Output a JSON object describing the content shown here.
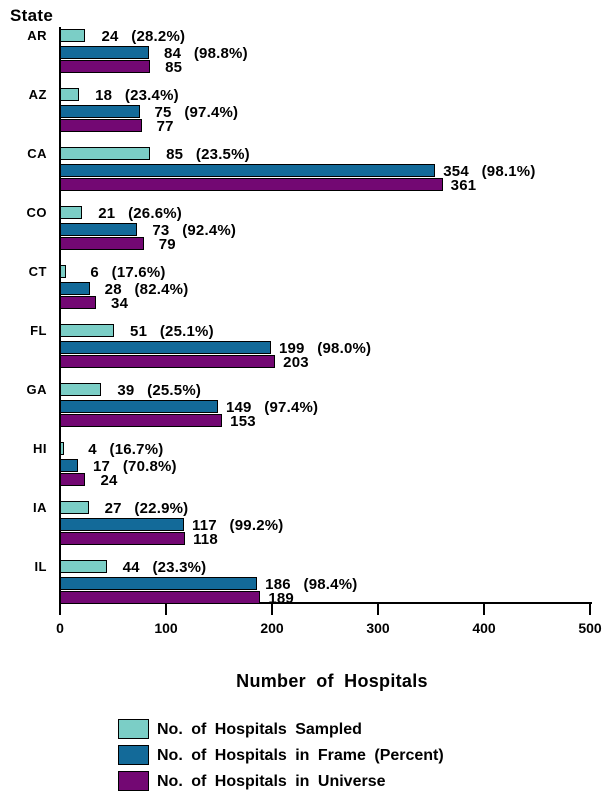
{
  "colors": {
    "sampled": "#7BCEC6",
    "frame": "#136A99",
    "universe": "#730873",
    "axis": "#000000",
    "background": "#ffffff"
  },
  "y_axis_title": "State",
  "x_axis_title": "Number of Hospitals",
  "legend": [
    {
      "label": "No. of Hospitals Sampled",
      "color_key": "sampled"
    },
    {
      "label": "No. of Hospitals in Frame (Percent)",
      "color_key": "frame"
    },
    {
      "label": "No. of Hospitals in Universe",
      "color_key": "universe"
    }
  ],
  "chart_data": {
    "type": "bar",
    "orientation": "horizontal",
    "title": "",
    "xlabel": "Number of Hospitals",
    "ylabel": "State",
    "xlim": [
      0,
      500
    ],
    "x_ticks": [
      0,
      100,
      200,
      300,
      400,
      500
    ],
    "grid": false,
    "legend_position": "bottom",
    "categories": [
      "AR",
      "AZ",
      "CA",
      "CO",
      "CT",
      "FL",
      "GA",
      "HI",
      "IA",
      "IL"
    ],
    "series": [
      {
        "name": "No. of Hospitals Sampled",
        "color_key": "sampled",
        "values": [
          24,
          18,
          85,
          21,
          6,
          51,
          39,
          4,
          27,
          44
        ],
        "percents": [
          28.2,
          23.4,
          23.5,
          26.6,
          17.6,
          25.1,
          25.5,
          16.7,
          22.9,
          23.3
        ],
        "labels": [
          "24  (28.2%)",
          "18  (23.4%)",
          "85  (23.5%)",
          "21  (26.6%)",
          "6  (17.6%)",
          "51  (25.1%)",
          "39  (25.5%)",
          "4  (16.7%)",
          "27  (22.9%)",
          "44  (23.3%)"
        ]
      },
      {
        "name": "No. of Hospitals in Frame (Percent)",
        "color_key": "frame",
        "values": [
          84,
          75,
          354,
          73,
          28,
          199,
          149,
          17,
          117,
          186
        ],
        "percents": [
          98.8,
          97.4,
          98.1,
          92.4,
          82.4,
          98.0,
          97.4,
          70.8,
          99.2,
          98.4
        ],
        "labels": [
          "84  (98.8%)",
          "75  (97.4%)",
          "354  (98.1%)",
          "73  (92.4%)",
          "28  (82.4%)",
          "199  (98.0%)",
          "149  (97.4%)",
          "17  (70.8%)",
          "117  (99.2%)",
          "186  (98.4%)"
        ]
      },
      {
        "name": "No. of Hospitals in Universe",
        "color_key": "universe",
        "values": [
          85,
          77,
          361,
          79,
          34,
          203,
          153,
          24,
          118,
          189
        ],
        "percents": null,
        "labels": [
          "85",
          "77",
          "361",
          "79",
          "34",
          "203",
          "153",
          "24",
          "118",
          "189"
        ]
      }
    ]
  }
}
